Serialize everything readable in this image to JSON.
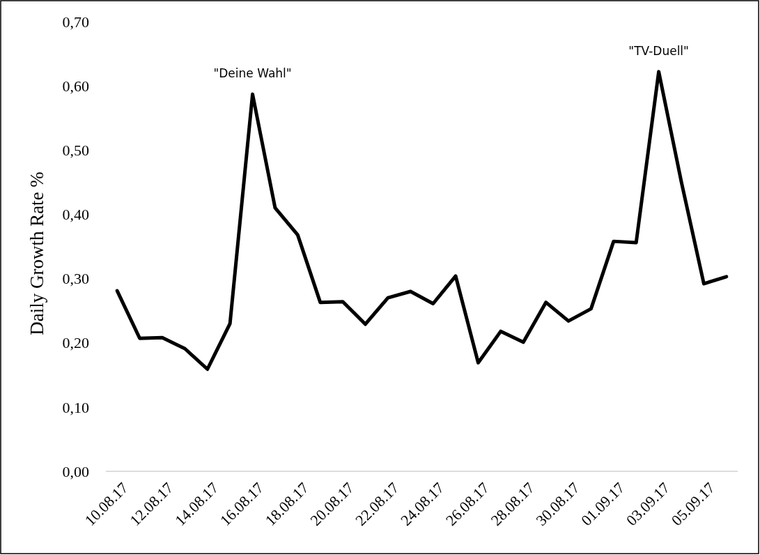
{
  "chart_data": {
    "type": "line",
    "ylabel": "Daily Growth Rate %",
    "categories": [
      "10.08.17",
      null,
      "12.08.17",
      null,
      "14.08.17",
      null,
      "16.08.17",
      null,
      "18.08.17",
      null,
      "20.08.17",
      null,
      "22.08.17",
      null,
      "24.08.17",
      null,
      "26.08.17",
      null,
      "28.08.17",
      null,
      "30.08.17",
      null,
      "01.09.17",
      null,
      "03.09.17",
      null,
      "05.09.17",
      null
    ],
    "series": [
      {
        "color": "#000000",
        "values": [
          0.281,
          0.207,
          0.208,
          0.191,
          0.159,
          0.23,
          0.587,
          0.41,
          0.368,
          0.263,
          0.264,
          0.229,
          0.27,
          0.28,
          0.261,
          0.304,
          0.169,
          0.218,
          0.201,
          0.263,
          0.234,
          0.253,
          0.358,
          0.356,
          0.622,
          0.451,
          0.292,
          0.303
        ]
      }
    ],
    "ylim": [
      0,
      0.7
    ],
    "yticks": [
      {
        "value": 0,
        "label": "0,00"
      },
      {
        "value": 0.1,
        "label": "0,10"
      },
      {
        "value": 0.2,
        "label": "0,20"
      },
      {
        "value": 0.3,
        "label": "0,30"
      },
      {
        "value": 0.4,
        "label": "0,40"
      },
      {
        "value": 0.5,
        "label": "0,50"
      },
      {
        "value": 0.6,
        "label": "0,60"
      },
      {
        "value": 0.7,
        "label": "0,70"
      }
    ],
    "annotations": [
      "\"Deine Wahl\"",
      "\"TV-Duell\""
    ],
    "grid": false,
    "marker": "none",
    "line_style": "solid"
  }
}
